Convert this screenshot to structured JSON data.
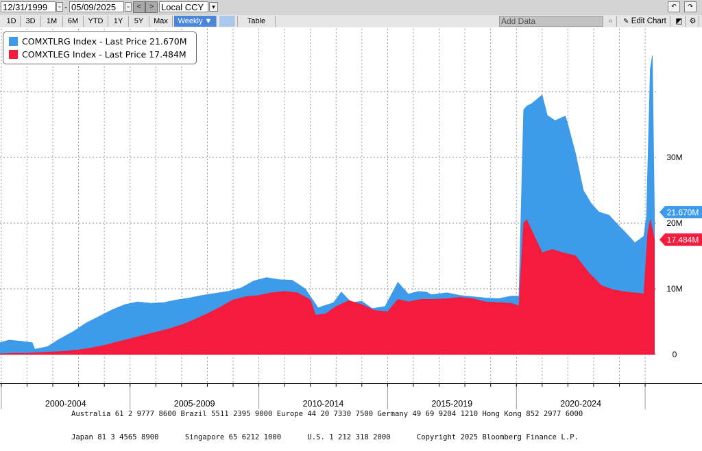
{
  "toolbar": {
    "start_date": "12/31/1999",
    "end_date": "05/09/2025",
    "currency": "Local CCY",
    "ranges": [
      "1D",
      "3D",
      "1M",
      "6M",
      "YTD",
      "1Y",
      "5Y",
      "Max"
    ],
    "frequency": "Weekly ▼",
    "table_label": "Table",
    "add_data_placeholder": "Add Data",
    "edit_chart_label": "Edit Chart",
    "prev_glyph": "<",
    "next_glyph": ">",
    "dropdown_glyph": "▾",
    "dash": "-",
    "undo_icon": "undo-icon",
    "redo_icon": "redo-icon",
    "settings_icon": "gear-icon"
  },
  "legend": [
    {
      "text": "COMXTLRG Index - Last Price 21.670M",
      "color": "#3d9be9"
    },
    {
      "text": "COMXTLEG Index - Last Price 17.484M",
      "color": "#f41b3d"
    }
  ],
  "chart_data": {
    "type": "area",
    "y_unit": "millions",
    "y_ticks": [
      0,
      10,
      20,
      30
    ],
    "y_tick_labels": [
      "0",
      "10M",
      "20M",
      "30M"
    ],
    "ylim": [
      -4,
      46
    ],
    "xlim": [
      1999.95,
      2025.45
    ],
    "x_period_labels": [
      "2000-2004",
      "2005-2009",
      "2010-2014",
      "2015-2019",
      "2020-2024"
    ],
    "x_period_starts": [
      2000,
      2005,
      2010,
      2015,
      2020
    ],
    "grid": true,
    "legend_position": "top-left",
    "series": [
      {
        "name": "COMXTLRG Index - Last Price",
        "color": "#3d9be9",
        "last_value_label": "21.670M",
        "last_value": 21.67,
        "x": [
          1999.95,
          2000.3,
          2000.8,
          2001.2,
          2001.3,
          2001.8,
          2002.2,
          2002.8,
          2003.3,
          2003.8,
          2004.3,
          2004.8,
          2005.3,
          2005.8,
          2006.3,
          2006.8,
          2007.3,
          2007.8,
          2008.3,
          2008.8,
          2009.3,
          2009.8,
          2010.3,
          2010.8,
          2011.3,
          2011.8,
          2012.3,
          2012.9,
          2013.2,
          2013.6,
          2014.0,
          2014.4,
          2014.9,
          2015.4,
          2015.8,
          2016.2,
          2016.5,
          2016.7,
          2017.3,
          2017.8,
          2018.3,
          2018.8,
          2019.3,
          2019.8,
          2020.1,
          2020.28,
          2020.4,
          2020.6,
          2021.0,
          2021.2,
          2021.5,
          2021.9,
          2022.0,
          2022.3,
          2022.6,
          2022.9,
          2023.2,
          2023.6,
          2024.0,
          2024.3,
          2024.6,
          2024.95,
          2025.05,
          2025.2,
          2025.28,
          2025.36
        ],
        "y": [
          1.8,
          2.2,
          2.0,
          1.8,
          0.8,
          1.2,
          2.2,
          3.5,
          4.8,
          5.8,
          6.8,
          7.6,
          8.0,
          7.8,
          7.9,
          8.3,
          8.6,
          9.0,
          9.3,
          9.6,
          10.1,
          11.2,
          11.7,
          11.4,
          11.3,
          10.0,
          7.1,
          7.9,
          9.5,
          7.9,
          8.1,
          7.0,
          7.3,
          11.0,
          9.2,
          9.6,
          9.5,
          9.1,
          9.4,
          9.0,
          8.8,
          8.6,
          8.5,
          8.9,
          8.9,
          37.2,
          37.8,
          38.2,
          39.5,
          36.4,
          35.6,
          36.3,
          35.0,
          30.5,
          25.0,
          23.0,
          21.7,
          21.2,
          19.5,
          18.3,
          17.0,
          18.0,
          21.0,
          43.5,
          45.5,
          21.67
        ]
      },
      {
        "name": "COMXTLEG Index - Last Price",
        "color": "#f41b3d",
        "last_value_label": "17.484M",
        "last_value": 17.484,
        "x": [
          1999.95,
          2000.5,
          2001.0,
          2001.5,
          2002.0,
          2002.5,
          2003.0,
          2003.5,
          2004.0,
          2004.5,
          2005.0,
          2005.5,
          2006.0,
          2006.5,
          2007.0,
          2007.5,
          2008.0,
          2008.5,
          2009.0,
          2009.5,
          2010.0,
          2010.5,
          2011.0,
          2011.5,
          2012.0,
          2012.2,
          2012.6,
          2013.0,
          2013.5,
          2014.0,
          2014.5,
          2015.0,
          2015.4,
          2015.8,
          2016.3,
          2016.8,
          2017.3,
          2017.8,
          2018.3,
          2018.8,
          2019.3,
          2019.8,
          2020.1,
          2020.28,
          2020.4,
          2020.7,
          2021.0,
          2021.4,
          2021.8,
          2022.3,
          2022.8,
          2023.3,
          2023.8,
          2024.3,
          2024.8,
          2024.95,
          2025.1,
          2025.2,
          2025.36
        ],
        "y": [
          0.1,
          0.2,
          0.2,
          0.3,
          0.4,
          0.5,
          0.7,
          1.0,
          1.4,
          1.9,
          2.4,
          2.9,
          3.4,
          3.9,
          4.5,
          5.3,
          6.2,
          7.2,
          8.3,
          8.8,
          9.0,
          9.4,
          9.6,
          9.4,
          8.3,
          6.0,
          6.2,
          7.3,
          8.2,
          7.6,
          6.7,
          6.5,
          8.4,
          8.0,
          8.4,
          8.4,
          8.5,
          8.7,
          8.5,
          8.0,
          7.9,
          7.8,
          7.4,
          20.0,
          20.5,
          18.0,
          15.5,
          16.0,
          15.5,
          15.0,
          12.5,
          10.5,
          9.8,
          9.5,
          9.3,
          9.2,
          18.5,
          20.5,
          17.484
        ]
      }
    ]
  },
  "footer": {
    "line1": "Australia 61 2 9777 8600 Brazil 5511 2395 9000 Europe 44 20 7330 7500 Germany 49 69 9204 1210 Hong Kong 852 2977 6000",
    "line2": "Japan 81 3 4565 8900      Singapore 65 6212 1000      U.S. 1 212 318 2000      Copyright 2025 Bloomberg Finance L.P."
  }
}
